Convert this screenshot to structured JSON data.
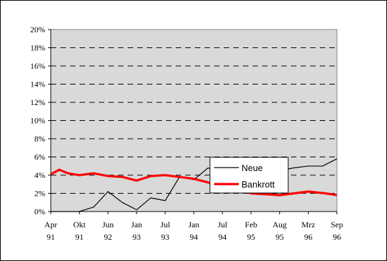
{
  "chart_data": {
    "type": "line",
    "title": "",
    "xlabel": "",
    "ylabel": "",
    "ylim": [
      0,
      20
    ],
    "y_ticks": [
      0,
      2,
      4,
      6,
      8,
      10,
      12,
      14,
      16,
      18,
      20
    ],
    "y_tick_suffix": "%",
    "x_tick_labels": [
      {
        "month": "Apr",
        "year": "91"
      },
      {
        "month": "Okt",
        "year": "91"
      },
      {
        "month": "Jun",
        "year": "92"
      },
      {
        "month": "Jan",
        "year": "93"
      },
      {
        "month": "Jul",
        "year": "93"
      },
      {
        "month": "Jan",
        "year": "94"
      },
      {
        "month": "Jul",
        "year": "94"
      },
      {
        "month": "Feb",
        "year": "95"
      },
      {
        "month": "Aug",
        "year": "95"
      },
      {
        "month": "Mrz",
        "year": "96"
      },
      {
        "month": "Sep",
        "year": "96"
      }
    ],
    "grid": true,
    "grid_style": "dashed-horizontal",
    "plot_background": "#d9d9d9",
    "legend": {
      "placement": "center-right"
    },
    "series": [
      {
        "name": "Neue",
        "color": "#000000",
        "x": [
          0,
          0.5,
          1,
          1.5,
          2,
          2.5,
          3,
          3.5,
          4,
          4.5,
          5,
          5.5,
          6,
          6.5,
          7,
          7.5,
          8,
          8.5,
          9,
          9.5,
          10
        ],
        "values": [
          0,
          0,
          0,
          0.5,
          2.2,
          1.0,
          0.2,
          1.5,
          1.2,
          3.8,
          3.5,
          4.8,
          4.2,
          3.8,
          4.5,
          4.0,
          4.5,
          4.8,
          5.0,
          5.0,
          5.8
        ]
      },
      {
        "name": "Bankrott",
        "color": "#ff0000",
        "x": [
          0,
          0.3,
          0.6,
          1,
          1.5,
          2,
          2.5,
          3,
          3.5,
          4,
          5,
          6,
          7,
          8,
          9,
          9.6,
          10
        ],
        "values": [
          4.1,
          4.6,
          4.2,
          4.0,
          4.2,
          3.9,
          3.8,
          3.4,
          3.9,
          4.0,
          3.6,
          2.8,
          2.0,
          1.8,
          2.2,
          2.0,
          1.8
        ]
      }
    ]
  }
}
